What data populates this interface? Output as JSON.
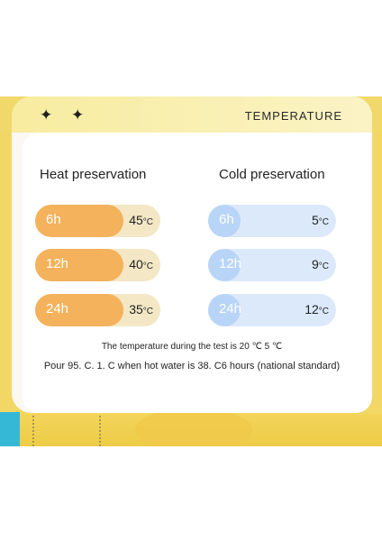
{
  "header": {
    "sparkles": "✦ ✦",
    "title": "TEMPERATURE"
  },
  "heat": {
    "title": "Heat preservation",
    "rows": [
      {
        "time": "6h",
        "value": "45",
        "unit": "°C"
      },
      {
        "time": "12h",
        "value": "40",
        "unit": "°C"
      },
      {
        "time": "24h",
        "value": "35",
        "unit": "°C"
      }
    ]
  },
  "cold": {
    "title": "Cold preservation",
    "rows": [
      {
        "time": "6h",
        "value": "5",
        "unit": "°C"
      },
      {
        "time": "12h",
        "value": "9",
        "unit": "°C"
      },
      {
        "time": "24h",
        "value": "12",
        "unit": "°C"
      }
    ]
  },
  "notes": {
    "line1": "The temperature during the test is 20 ℃ 5 ℃",
    "line2": "Pour 95. C. 1. C when hot water is 38. C6 hours (national standard)"
  },
  "colors": {
    "heat": "#f3b25b",
    "cold": "#b8d5f7",
    "background": "#f2d766",
    "accent": "#35b8d6"
  }
}
